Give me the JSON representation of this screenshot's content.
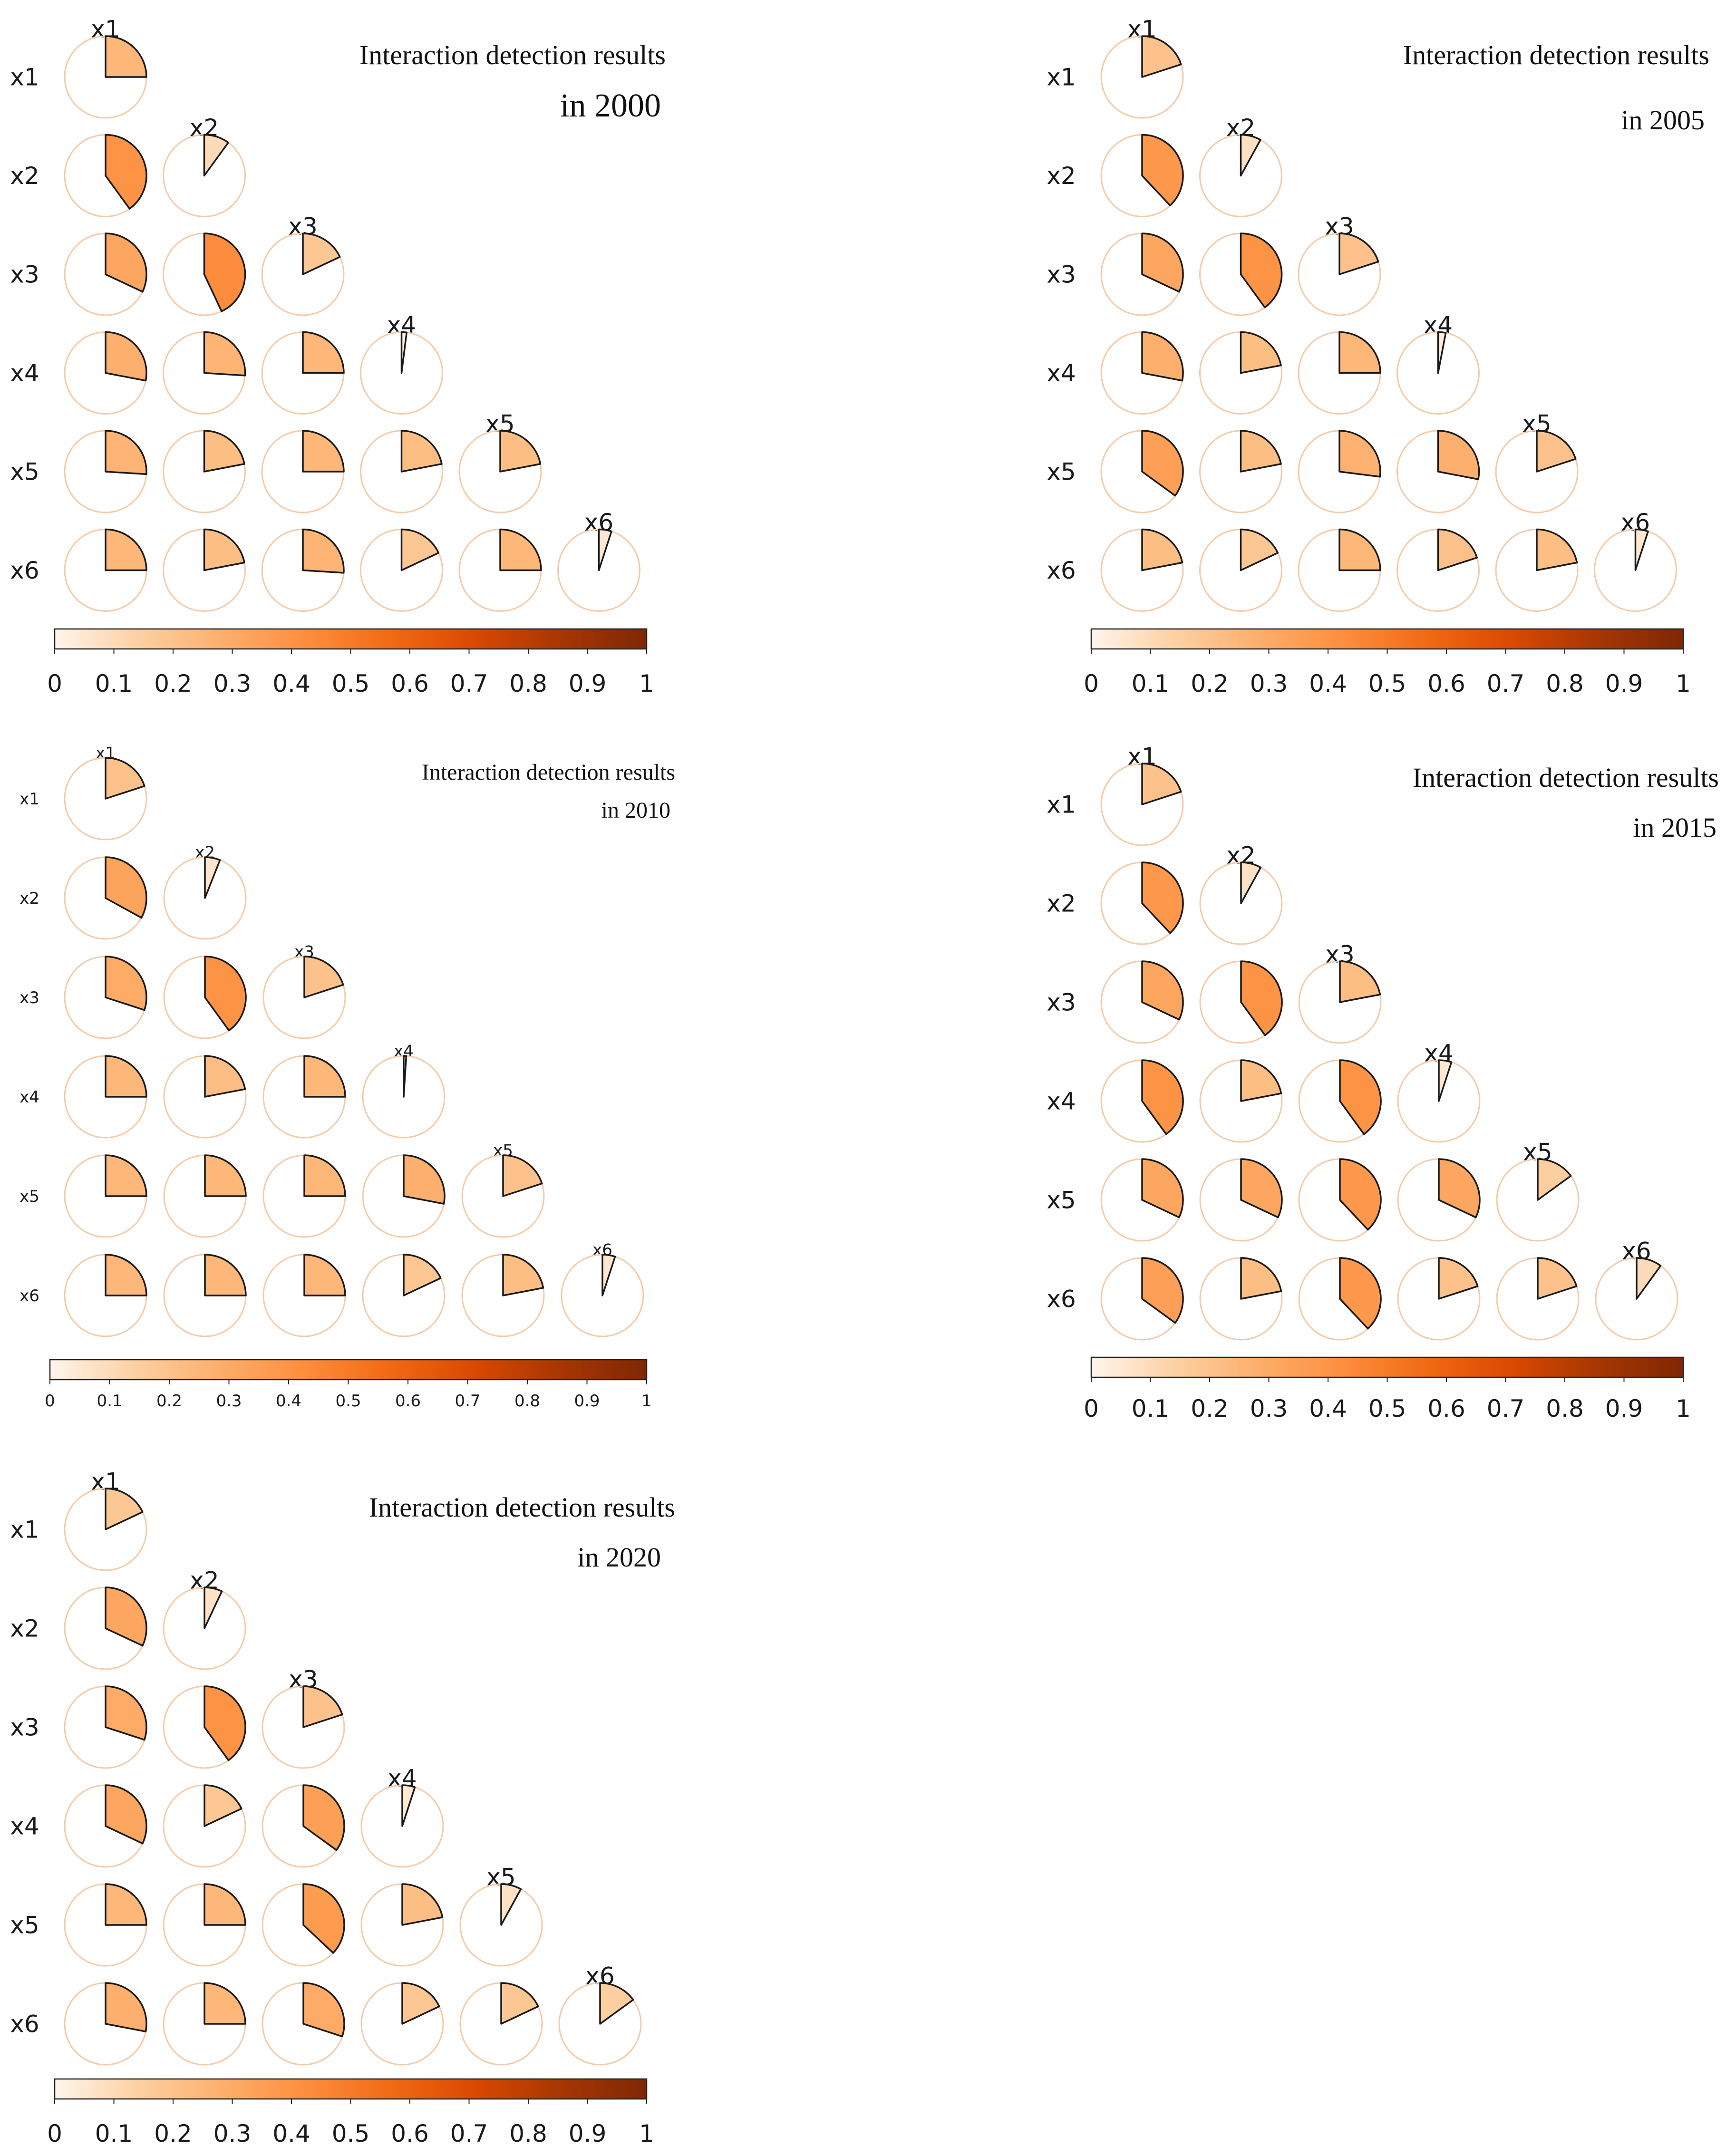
{
  "colorbar": {
    "stops": [
      "#fff5eb",
      "#fdd0a2",
      "#fdae6b",
      "#fd8d3c",
      "#f16913",
      "#d94801",
      "#a63603",
      "#7f2704"
    ],
    "ticks": [
      "0",
      "0.1",
      "0.2",
      "0.3",
      "0.4",
      "0.5",
      "0.6",
      "0.7",
      "0.8",
      "0.9",
      "1"
    ]
  },
  "chart_data": [
    {
      "type": "heatmap",
      "subtype": "pie-matrix (lower triangle)",
      "title_line1": "Interaction detection results",
      "title_line2": "in 2000",
      "variables": [
        "x1",
        "x2",
        "x3",
        "x4",
        "x5",
        "x6"
      ],
      "value_range": [
        0,
        1
      ],
      "matrix": [
        [
          0.25
        ],
        [
          0.4,
          0.1
        ],
        [
          0.32,
          0.43,
          0.18
        ],
        [
          0.28,
          0.26,
          0.25,
          0.02
        ],
        [
          0.26,
          0.22,
          0.25,
          0.22,
          0.22
        ],
        [
          0.25,
          0.22,
          0.26,
          0.18,
          0.25,
          0.05
        ]
      ]
    },
    {
      "type": "heatmap",
      "subtype": "pie-matrix (lower triangle)",
      "title_line1": "Interaction detection results",
      "title_line2": "in 2005",
      "variables": [
        "x1",
        "x2",
        "x3",
        "x4",
        "x5",
        "x6"
      ],
      "value_range": [
        0,
        1
      ],
      "matrix": [
        [
          0.2
        ],
        [
          0.38,
          0.08
        ],
        [
          0.32,
          0.4,
          0.2
        ],
        [
          0.28,
          0.22,
          0.25,
          0.03
        ],
        [
          0.35,
          0.22,
          0.27,
          0.28,
          0.2
        ],
        [
          0.22,
          0.18,
          0.25,
          0.2,
          0.22,
          0.05
        ]
      ]
    },
    {
      "type": "heatmap",
      "subtype": "pie-matrix (lower triangle)",
      "title_line1": "Interaction detection results",
      "title_line2": "in 2010",
      "variables": [
        "x1",
        "x2",
        "x3",
        "x4",
        "x5",
        "x6"
      ],
      "value_range": [
        0,
        1
      ],
      "matrix": [
        [
          0.2
        ],
        [
          0.33,
          0.06
        ],
        [
          0.3,
          0.4,
          0.2
        ],
        [
          0.25,
          0.22,
          0.25,
          0.01
        ],
        [
          0.25,
          0.25,
          0.25,
          0.28,
          0.2
        ],
        [
          0.25,
          0.25,
          0.25,
          0.18,
          0.22,
          0.05
        ]
      ]
    },
    {
      "type": "heatmap",
      "subtype": "pie-matrix (lower triangle)",
      "title_line1": "Interaction detection results",
      "title_line2": "in 2015",
      "variables": [
        "x1",
        "x2",
        "x3",
        "x4",
        "x5",
        "x6"
      ],
      "value_range": [
        0,
        1
      ],
      "matrix": [
        [
          0.2
        ],
        [
          0.38,
          0.08
        ],
        [
          0.32,
          0.4,
          0.22
        ],
        [
          0.4,
          0.22,
          0.4,
          0.05
        ],
        [
          0.32,
          0.32,
          0.38,
          0.32,
          0.15
        ],
        [
          0.35,
          0.22,
          0.38,
          0.2,
          0.2,
          0.1
        ]
      ]
    },
    {
      "type": "heatmap",
      "subtype": "pie-matrix (lower triangle)",
      "title_line1": "Interaction detection results",
      "title_line2": "in 2020",
      "variables": [
        "x1",
        "x2",
        "x3",
        "x4",
        "x5",
        "x6"
      ],
      "value_range": [
        0,
        1
      ],
      "matrix": [
        [
          0.18
        ],
        [
          0.32,
          0.07
        ],
        [
          0.3,
          0.4,
          0.2
        ],
        [
          0.32,
          0.18,
          0.35,
          0.05
        ],
        [
          0.25,
          0.25,
          0.37,
          0.22,
          0.08
        ],
        [
          0.28,
          0.25,
          0.3,
          0.18,
          0.18,
          0.15
        ]
      ]
    }
  ]
}
